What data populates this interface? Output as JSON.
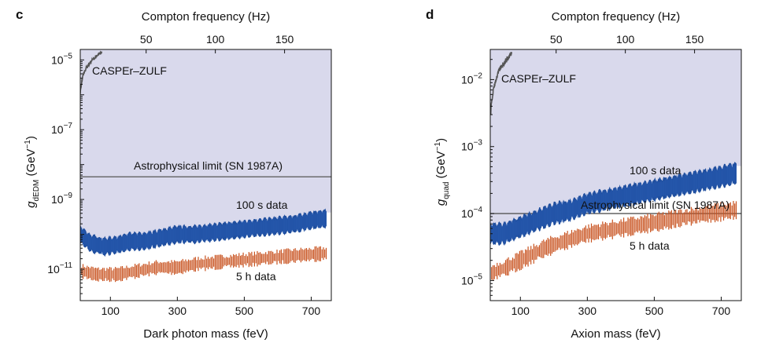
{
  "chart_data": [
    {
      "panel_label": "c",
      "type": "line",
      "title": "",
      "top_axis_label": "Compton frequency (Hz)",
      "top_ticks": [
        "50",
        "100",
        "150"
      ],
      "top_tick_values": [
        50,
        100,
        150
      ],
      "xlabel": "Dark photon mass (feV)",
      "ylabel_main": "g",
      "ylabel_sub": "dEDM",
      "ylabel_unit": " (GeV",
      "ylabel_unit_exp": "−1",
      "ylabel_unit_close": ")",
      "xlim": [
        10,
        760
      ],
      "ylim_log10": [
        -11.9,
        -4.7
      ],
      "y_scale": "log",
      "x_ticks": [
        "100",
        "300",
        "500",
        "700"
      ],
      "x_tick_values": [
        100,
        300,
        500,
        700
      ],
      "y_ticks": [
        {
          "base": "10",
          "exp": "−5",
          "log10": -5
        },
        {
          "base": "10",
          "exp": "−7",
          "log10": -7
        },
        {
          "base": "10",
          "exp": "−9",
          "log10": -9
        },
        {
          "base": "10",
          "exp": "−11",
          "log10": -11
        }
      ],
      "excluded_region_color": "#d9d9ec",
      "annotations": {
        "caspr": "CASPEr–ZULF",
        "astro": "Astrophysical limit (SN 1987A)",
        "d100": "100 s data",
        "d5h": "5 h data"
      },
      "astro_limit_log10": -8.35,
      "series": [
        {
          "name": "CASPEr–ZULF",
          "color": "#555555",
          "x": [
            10,
            14,
            18,
            24,
            30,
            38,
            46,
            56,
            66,
            74
          ],
          "log10_y": [
            -5.95,
            -5.65,
            -5.45,
            -5.3,
            -5.2,
            -5.1,
            -5.0,
            -4.92,
            -4.85,
            -4.78
          ]
        },
        {
          "name": "100 s data",
          "color": "#1f4e9e",
          "x": [
            10,
            40,
            80,
            120,
            160,
            200,
            250,
            300,
            350,
            400,
            450,
            500,
            550,
            600,
            650,
            700,
            740
          ],
          "log10_y": [
            -10.0,
            -10.25,
            -10.35,
            -10.3,
            -10.2,
            -10.2,
            -10.1,
            -10.0,
            -10.0,
            -9.95,
            -9.9,
            -9.85,
            -9.8,
            -9.75,
            -9.7,
            -9.6,
            -9.55
          ],
          "band_width_dex": 0.35
        },
        {
          "name": "5 h data",
          "color": "#c8521f",
          "x": [
            10,
            60,
            120,
            180,
            240,
            300,
            360,
            420,
            480,
            540,
            600,
            660,
            740
          ],
          "log10_y": [
            -11.05,
            -11.15,
            -11.15,
            -11.05,
            -10.95,
            -10.95,
            -10.85,
            -10.8,
            -10.75,
            -10.7,
            -10.65,
            -10.6,
            -10.55
          ],
          "spike_height_dex": 0.45
        }
      ]
    },
    {
      "panel_label": "d",
      "type": "line",
      "title": "",
      "top_axis_label": "Compton frequency (Hz)",
      "top_ticks": [
        "50",
        "100",
        "150"
      ],
      "top_tick_values": [
        50,
        100,
        150
      ],
      "xlabel": "Axion mass (feV)",
      "ylabel_main": "g",
      "ylabel_sub": "quad",
      "ylabel_unit": " (GeV",
      "ylabel_unit_exp": "−1",
      "ylabel_unit_close": ")",
      "xlim": [
        10,
        760
      ],
      "ylim_log10": [
        -5.3,
        -1.55
      ],
      "y_scale": "log",
      "x_ticks": [
        "100",
        "300",
        "500",
        "700"
      ],
      "x_tick_values": [
        100,
        300,
        500,
        700
      ],
      "y_ticks": [
        {
          "base": "10",
          "exp": "−2",
          "log10": -2
        },
        {
          "base": "10",
          "exp": "−3",
          "log10": -3
        },
        {
          "base": "10",
          "exp": "−4",
          "log10": -4
        },
        {
          "base": "10",
          "exp": "−5",
          "log10": -5
        }
      ],
      "excluded_region_color": "#d9d9ec",
      "annotations": {
        "caspr": "CASPEr–ZULF",
        "astro": "Astrophysical limit (SN 1987A)",
        "d100": "100 s data",
        "d5h": "5 h data"
      },
      "astro_limit_log10": -4.0,
      "series": [
        {
          "name": "CASPEr–ZULF",
          "color": "#555555",
          "x": [
            10,
            14,
            18,
            24,
            30,
            38,
            46,
            56,
            66,
            74
          ],
          "log10_y": [
            -2.55,
            -2.35,
            -2.2,
            -2.05,
            -1.95,
            -1.85,
            -1.78,
            -1.72,
            -1.66,
            -1.6
          ],
          "band_width_dex": 0
        },
        {
          "name": "100 s data",
          "color": "#1f4e9e",
          "x": [
            10,
            50,
            100,
            150,
            200,
            250,
            300,
            350,
            400,
            450,
            500,
            550,
            600,
            650,
            700,
            740
          ],
          "log10_y": [
            -4.3,
            -4.3,
            -4.2,
            -4.1,
            -4.0,
            -3.95,
            -3.85,
            -3.8,
            -3.75,
            -3.7,
            -3.65,
            -3.6,
            -3.55,
            -3.5,
            -3.45,
            -3.4
          ],
          "band_width_dex": 0.22
        },
        {
          "name": "5 h data",
          "color": "#c8521f",
          "x": [
            10,
            60,
            120,
            180,
            240,
            300,
            360,
            420,
            480,
            540,
            600,
            660,
            740
          ],
          "log10_y": [
            -4.9,
            -4.8,
            -4.65,
            -4.5,
            -4.4,
            -4.3,
            -4.25,
            -4.2,
            -4.15,
            -4.1,
            -4.05,
            -4.0,
            -3.95
          ],
          "spike_height_dex": 0.3
        }
      ]
    }
  ]
}
